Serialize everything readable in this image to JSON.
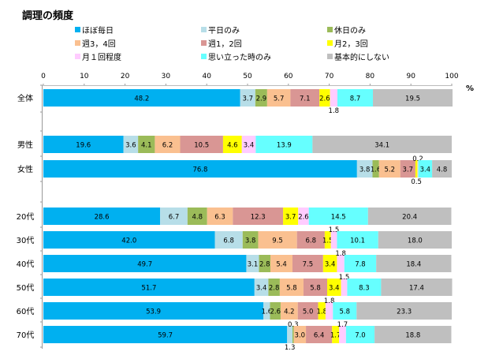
{
  "chart_data": {
    "type": "bar",
    "orientation": "horizontal",
    "stacked": true,
    "title": "調理の頻度",
    "unit_label": "%",
    "xlim": [
      0,
      100
    ],
    "xticks": [
      0,
      10,
      20,
      30,
      40,
      50,
      60,
      70,
      80,
      90,
      100
    ],
    "legend_position": "top",
    "categories": [
      "全体",
      "男性",
      "女性",
      "20代",
      "30代",
      "40代",
      "50代",
      "60代",
      "70代"
    ],
    "series": [
      {
        "name": "ほぼ毎日",
        "color": "#00B0F0",
        "values": [
          48.2,
          19.6,
          76.8,
          28.6,
          42.0,
          49.7,
          51.7,
          53.9,
          59.7
        ]
      },
      {
        "name": "平日のみ",
        "color": "#B7DEE8",
        "values": [
          3.7,
          3.6,
          3.8,
          6.7,
          6.8,
          3.1,
          3.4,
          1.6,
          1.3
        ]
      },
      {
        "name": "休日のみ",
        "color": "#9BBB59",
        "values": [
          2.9,
          4.1,
          1.6,
          4.8,
          3.8,
          2.8,
          2.8,
          2.6,
          0.3
        ]
      },
      {
        "name": "週3，4回",
        "color": "#FAC090",
        "values": [
          5.7,
          6.2,
          5.2,
          6.3,
          9.5,
          5.4,
          5.8,
          4.2,
          3.0
        ]
      },
      {
        "name": "週1，2回",
        "color": "#D99694",
        "values": [
          7.1,
          10.5,
          3.7,
          12.3,
          6.8,
          7.5,
          5.8,
          5.0,
          6.4
        ]
      },
      {
        "name": "月2，3回",
        "color": "#FFFF00",
        "values": [
          2.6,
          4.6,
          0.5,
          3.7,
          1.5,
          3.4,
          3.4,
          1.8,
          1.7
        ]
      },
      {
        "name": "月１回程度",
        "color": "#FFCCFF",
        "values": [
          1.8,
          3.4,
          0.2,
          2.6,
          1.5,
          1.8,
          1.5,
          1.8,
          1.7
        ]
      },
      {
        "name": "思い立った時のみ",
        "color": "#66FFFF",
        "values": [
          8.7,
          13.9,
          3.4,
          14.5,
          10.1,
          7.8,
          8.3,
          5.8,
          7.0
        ]
      },
      {
        "name": "基本的にしない",
        "color": "#BFBFBF",
        "values": [
          19.5,
          34.1,
          4.8,
          20.4,
          18.0,
          18.4,
          17.4,
          23.3,
          18.8
        ]
      }
    ]
  }
}
